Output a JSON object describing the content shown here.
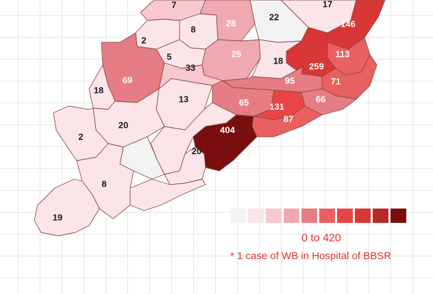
{
  "colors": {
    "scale": [
      "#f3f3f3",
      "#fbe5e8",
      "#f7c9cf",
      "#f0a9b1",
      "#e77d84",
      "#e86060",
      "#e94545",
      "#d93636",
      "#b82a2a",
      "#7a0d0d"
    ],
    "label_light": "#ffffff",
    "label_dark": "#1a1a1a",
    "accent_text": "#e0322f"
  },
  "districts": [
    {
      "id": "nw-top",
      "value": "7",
      "bin": 2
    },
    {
      "id": "sundargarh",
      "value": "8",
      "bin": 1
    },
    {
      "id": "keonjhar",
      "value": "28",
      "bin": 3
    },
    {
      "id": "mayurbhanj",
      "value": "22",
      "bin": 0
    },
    {
      "id": "balasore-n",
      "value": "17",
      "bin": 1
    },
    {
      "id": "balasore",
      "value": "146",
      "bin": 7
    },
    {
      "id": "jharsuguda",
      "value": "2",
      "bin": 1
    },
    {
      "id": "sambalpur",
      "value": "5",
      "bin": 1
    },
    {
      "id": "deogarh",
      "value": "25",
      "bin": 3
    },
    {
      "id": "keonjhar-s",
      "value": "18",
      "bin": 1
    },
    {
      "id": "bhadrak",
      "value": "113",
      "bin": 5
    },
    {
      "id": "jajpur",
      "value": "259",
      "bin": 7
    },
    {
      "id": "bargarh",
      "value": "69",
      "bin": 4
    },
    {
      "id": "angul",
      "value": "33",
      "bin": 2
    },
    {
      "id": "dhenkanal",
      "value": "95",
      "bin": 4
    },
    {
      "id": "kendrapara",
      "value": "71",
      "bin": 5
    },
    {
      "id": "subarnapur",
      "value": "18",
      "bin": 1
    },
    {
      "id": "boudh",
      "value": "13",
      "bin": 1
    },
    {
      "id": "cuttack",
      "value": "65",
      "bin": 4
    },
    {
      "id": "khurda",
      "value": "131",
      "bin": 6
    },
    {
      "id": "jagatsinghpur",
      "value": "66",
      "bin": 4
    },
    {
      "id": "puri",
      "value": "87",
      "bin": 5
    },
    {
      "id": "balangir",
      "value": "20",
      "bin": 1
    },
    {
      "id": "kandhamal",
      "value": "20",
      "bin": 1
    },
    {
      "id": "ganjam",
      "value": "404",
      "bin": 9
    },
    {
      "id": "nuapada",
      "value": "2",
      "bin": 1
    },
    {
      "id": "kalahandi",
      "value": "",
      "bin": 0
    },
    {
      "id": "rayagada",
      "value": "8",
      "bin": 1
    },
    {
      "id": "gajapati",
      "value": "",
      "bin": 1
    },
    {
      "id": "koraput",
      "value": "19",
      "bin": 1
    },
    {
      "id": "malkangiri",
      "value": "",
      "bin": 1
    }
  ],
  "legend": {
    "range_label": "0 to 420",
    "note": "* 1 case of WB in Hospital of BBSR"
  }
}
